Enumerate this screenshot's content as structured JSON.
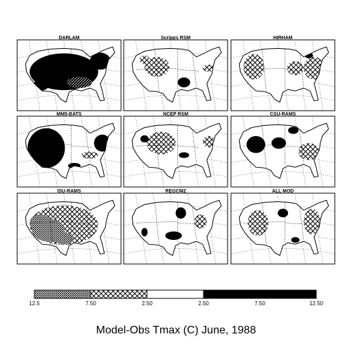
{
  "figure": {
    "caption": "Model-Obs Tmax (C) June, 1988"
  },
  "panels": [
    {
      "label": "DARLAM",
      "pattern": "warm-large"
    },
    {
      "label": "Scripps RSM",
      "pattern": "cold-mid"
    },
    {
      "label": "HIRHAM",
      "pattern": "cold-east"
    },
    {
      "label": "MM5-BATS",
      "pattern": "warm-west"
    },
    {
      "label": "NCEP RSM",
      "pattern": "cold-patchy"
    },
    {
      "label": "CSU-RAMS",
      "pattern": "warm-scattered"
    },
    {
      "label": "ISU-RAMS",
      "pattern": "cold-large"
    },
    {
      "label": "REGCM2",
      "pattern": "warm-sparse"
    },
    {
      "label": "ALL MOD",
      "pattern": "cold-rings"
    }
  ],
  "colorbar": {
    "ticks": [
      "12.5",
      "7.50",
      "2.50",
      "2.50",
      "7.50",
      "12.50"
    ],
    "segments": [
      {
        "name": "dense-dots",
        "color": "#000000"
      },
      {
        "name": "crosshatch",
        "color": "#000000"
      },
      {
        "name": "blank",
        "color": "#ffffff"
      },
      {
        "name": "solid",
        "color": "#000000"
      }
    ]
  }
}
